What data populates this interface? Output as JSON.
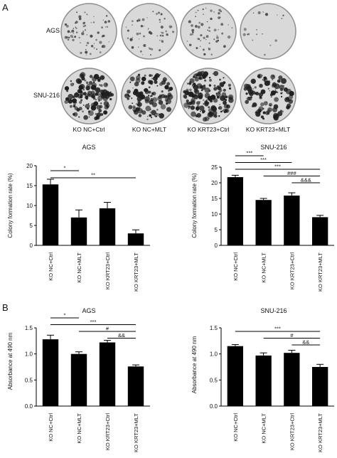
{
  "panel_labels": {
    "a": "A",
    "b": "B"
  },
  "dish_rows": [
    {
      "label": "AGS",
      "density": "sparse"
    },
    {
      "label": "SNU-216",
      "density": "dense"
    }
  ],
  "dish_columns": [
    "KO NC+Ctrl",
    "KO NC+MLT",
    "KO KRT23+Ctrl",
    "KO KRT23+MLT"
  ],
  "colors": {
    "bar": "#000000",
    "dish_rim": "#8c8c8c",
    "dish_fill": "#d9d9d9"
  },
  "chart_data": [
    {
      "type": "bar",
      "title": "AGS",
      "ylabel": "Colony formation rate (%)",
      "categories": [
        "KO NC+Ctrl",
        "KO NC+MLT",
        "KO KRT23+Ctrl",
        "KO KRT23+MLT"
      ],
      "values": [
        15.3,
        7.0,
        9.3,
        3.0
      ],
      "errors": [
        1.3,
        1.9,
        1.5,
        0.9
      ],
      "ylim": [
        0,
        20
      ],
      "yticks": [
        0,
        5,
        10,
        15,
        20
      ],
      "significance": [
        {
          "from": 0,
          "to": 1,
          "label": "*"
        },
        {
          "from": 0,
          "to": 3,
          "label": "**"
        }
      ]
    },
    {
      "type": "bar",
      "title": "SNU-216",
      "ylabel": "Colony formation rate (%)",
      "categories": [
        "KO NC+Ctrl",
        "KO NC+MLT",
        "KO KRT23+Ctrl",
        "KO KRT23+MLT"
      ],
      "values": [
        21.8,
        14.5,
        15.9,
        9.0
      ],
      "errors": [
        0.6,
        0.5,
        0.9,
        0.6
      ],
      "ylim": [
        0,
        25
      ],
      "yticks": [
        0,
        5,
        10,
        15,
        20,
        25
      ],
      "significance": [
        {
          "from": 0,
          "to": 1,
          "label": "***"
        },
        {
          "from": 0,
          "to": 2,
          "label": "***"
        },
        {
          "from": 0,
          "to": 3,
          "label": "***"
        },
        {
          "from": 1,
          "to": 3,
          "label": "###"
        },
        {
          "from": 2,
          "to": 3,
          "label": "&&&"
        }
      ]
    },
    {
      "type": "bar",
      "title": "AGS",
      "ylabel": "Absorbance at 490 nm",
      "categories": [
        "KO NC+Ctrl",
        "KO NC+MLT",
        "KO KRT23+Ctrl",
        "KO KRT23+MLT"
      ],
      "values": [
        1.28,
        1.0,
        1.22,
        0.76
      ],
      "errors": [
        0.08,
        0.04,
        0.04,
        0.03
      ],
      "ylim": [
        0,
        1.5
      ],
      "yticks": [
        0.0,
        0.5,
        1.0,
        1.5
      ],
      "significance": [
        {
          "from": 0,
          "to": 1,
          "label": "*"
        },
        {
          "from": 0,
          "to": 3,
          "label": "***"
        },
        {
          "from": 1,
          "to": 3,
          "label": "#"
        },
        {
          "from": 2,
          "to": 3,
          "label": "&&"
        }
      ]
    },
    {
      "type": "bar",
      "title": "SNU-216",
      "ylabel": "Absorbance at 490 nm",
      "categories": [
        "KO NC+Ctrl",
        "KO NC+MLT",
        "KO KRT23+Ctrl",
        "KO KRT23+MLT"
      ],
      "values": [
        1.15,
        0.97,
        1.02,
        0.75
      ],
      "errors": [
        0.03,
        0.05,
        0.05,
        0.05
      ],
      "ylim": [
        0,
        1.5
      ],
      "yticks": [
        0.0,
        0.5,
        1.0,
        1.5
      ],
      "significance": [
        {
          "from": 0,
          "to": 3,
          "label": "***"
        },
        {
          "from": 1,
          "to": 3,
          "label": "#"
        },
        {
          "from": 2,
          "to": 3,
          "label": "&&"
        }
      ]
    }
  ]
}
